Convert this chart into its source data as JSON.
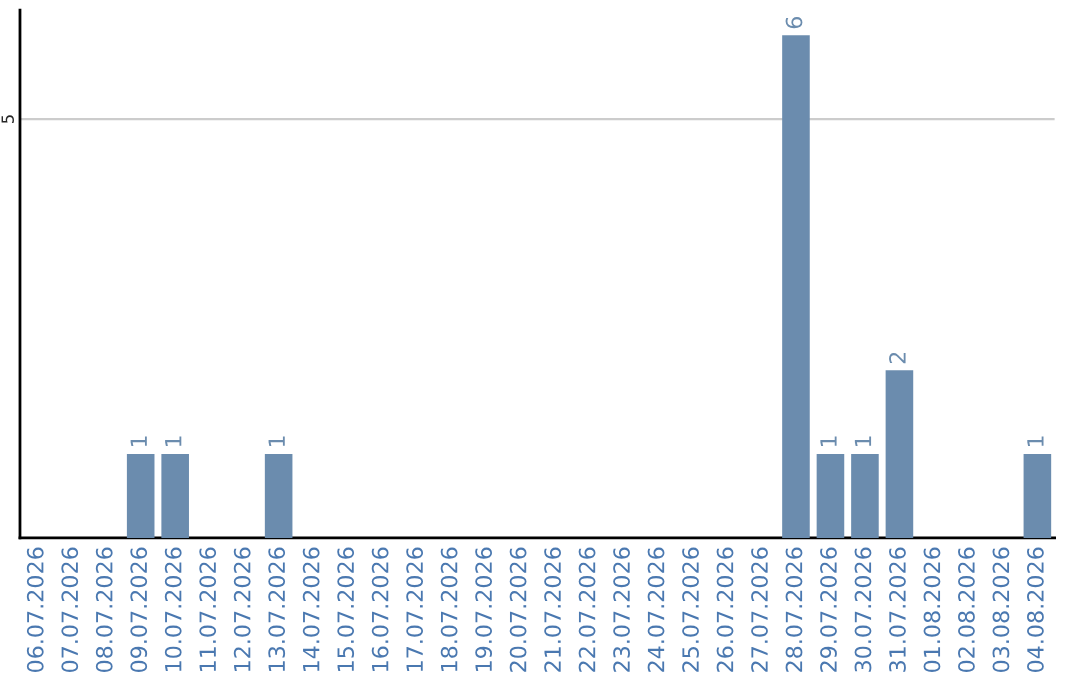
{
  "chart_data": {
    "type": "bar",
    "categories": [
      "06.07.2026",
      "07.07.2026",
      "08.07.2026",
      "09.07.2026",
      "10.07.2026",
      "11.07.2026",
      "12.07.2026",
      "13.07.2026",
      "14.07.2026",
      "15.07.2026",
      "16.07.2026",
      "17.07.2026",
      "18.07.2026",
      "19.07.2026",
      "20.07.2026",
      "21.07.2026",
      "22.07.2026",
      "23.07.2026",
      "24.07.2026",
      "25.07.2026",
      "26.07.2026",
      "27.07.2026",
      "28.07.2026",
      "29.07.2026",
      "30.07.2026",
      "31.07.2026",
      "01.08.2026",
      "02.08.2026",
      "03.08.2026",
      "04.08.2026"
    ],
    "values": [
      0,
      0,
      0,
      1,
      1,
      0,
      0,
      1,
      0,
      0,
      0,
      0,
      0,
      0,
      0,
      0,
      0,
      0,
      0,
      0,
      0,
      0,
      6,
      1,
      1,
      2,
      0,
      0,
      0,
      1
    ],
    "value_labels": [
      null,
      null,
      null,
      "1",
      "1",
      null,
      null,
      "1",
      null,
      null,
      null,
      null,
      null,
      null,
      null,
      null,
      null,
      null,
      null,
      null,
      null,
      null,
      "6",
      "1",
      "1",
      "2",
      null,
      null,
      null,
      "1"
    ],
    "color": "#6b8cae",
    "ylim": [
      0,
      6.3
    ],
    "yticks": [
      5
    ],
    "grid": "y",
    "legend": false
  }
}
